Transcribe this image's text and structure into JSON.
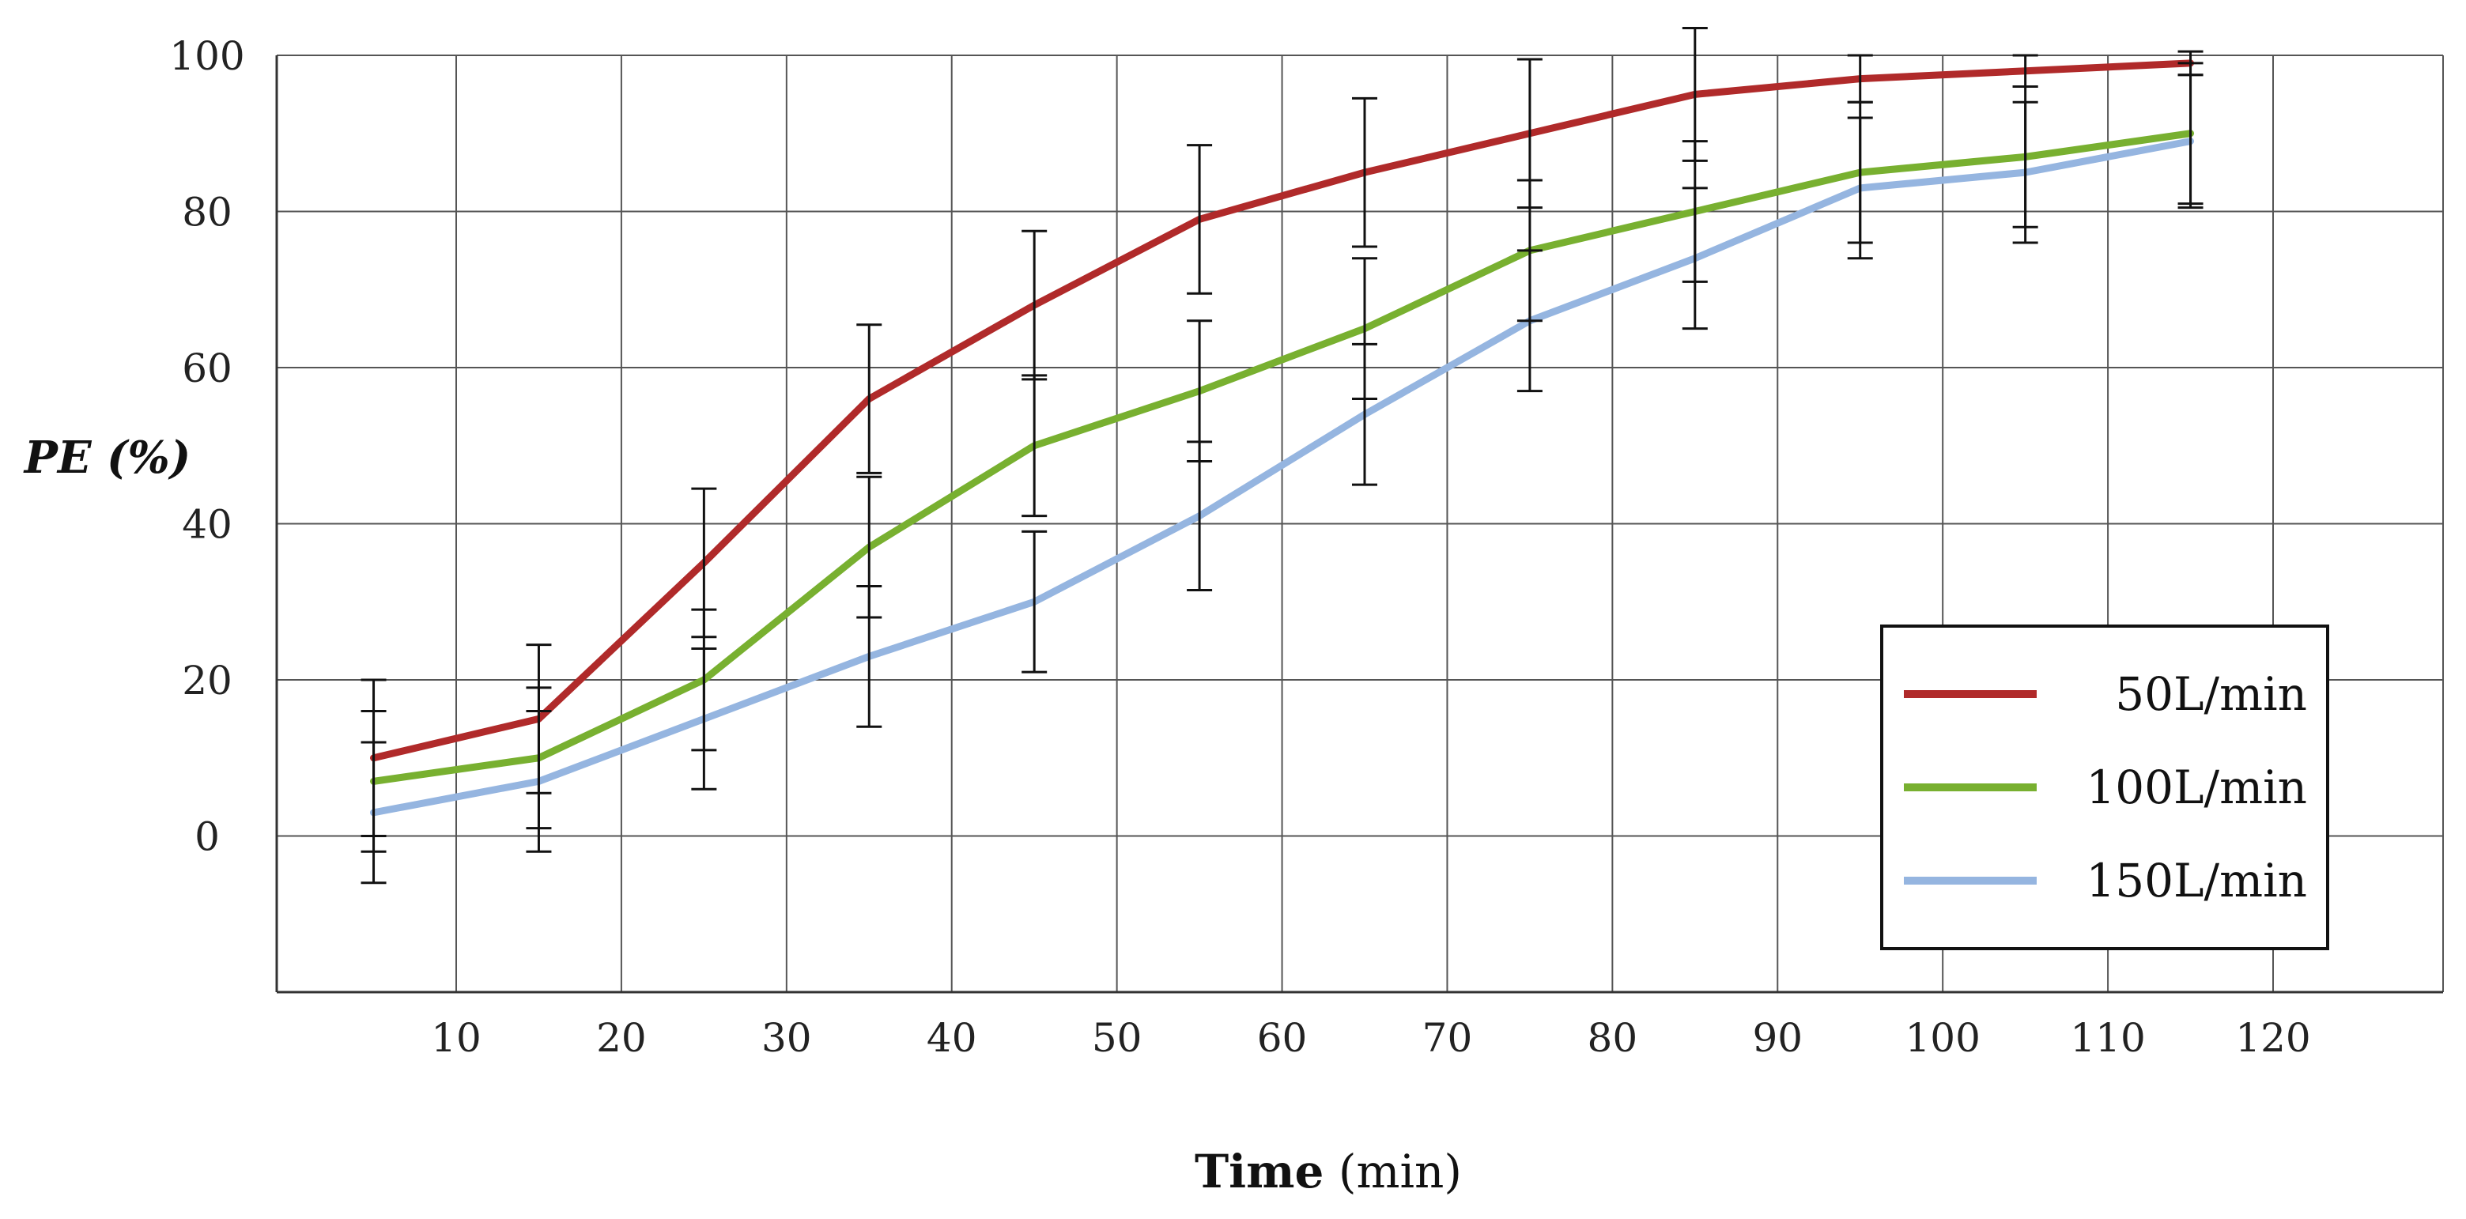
{
  "chart_data": {
    "type": "line",
    "xlabel_bold": "Time",
    "xlabel_rest": " (min)",
    "ylabel": "PE (%)",
    "xlim": [
      0,
      120
    ],
    "ylim": [
      -20,
      100
    ],
    "x_ticks": [
      "10",
      "20",
      "30",
      "40",
      "50",
      "60",
      "70",
      "80",
      "90",
      "100",
      "110",
      "120"
    ],
    "y_ticks": [
      "0",
      "20",
      "40",
      "60",
      "80",
      "100"
    ],
    "grid": true,
    "legend_position": "right",
    "x": [
      5,
      15,
      25,
      35,
      45,
      55,
      65,
      75,
      85,
      95,
      105,
      115
    ],
    "series": [
      {
        "name": "50L/min",
        "color": "#b02a2a",
        "values": [
          10,
          15,
          35,
          56,
          68,
          79,
          85,
          90,
          95,
          97,
          98,
          99
        ],
        "errors": [
          10,
          9.5,
          9.5,
          9.5,
          9.5,
          9.5,
          9.5,
          9.5,
          8.5,
          3,
          2,
          1.5
        ]
      },
      {
        "name": "100L/min",
        "color": "#78b030",
        "values": [
          7,
          10,
          20,
          37,
          50,
          57,
          65,
          75,
          80,
          85,
          87,
          90
        ],
        "errors": [
          9,
          9,
          9,
          9,
          9,
          9,
          9,
          9,
          9,
          9,
          9,
          9
        ]
      },
      {
        "name": "150L/min",
        "color": "#95b5e0",
        "values": [
          3,
          7,
          15,
          23,
          30,
          41,
          54,
          66,
          74,
          83,
          85,
          89
        ],
        "errors": [
          9,
          9,
          9,
          9,
          9,
          9.5,
          9,
          9,
          9,
          9,
          9,
          8.5
        ]
      }
    ]
  }
}
